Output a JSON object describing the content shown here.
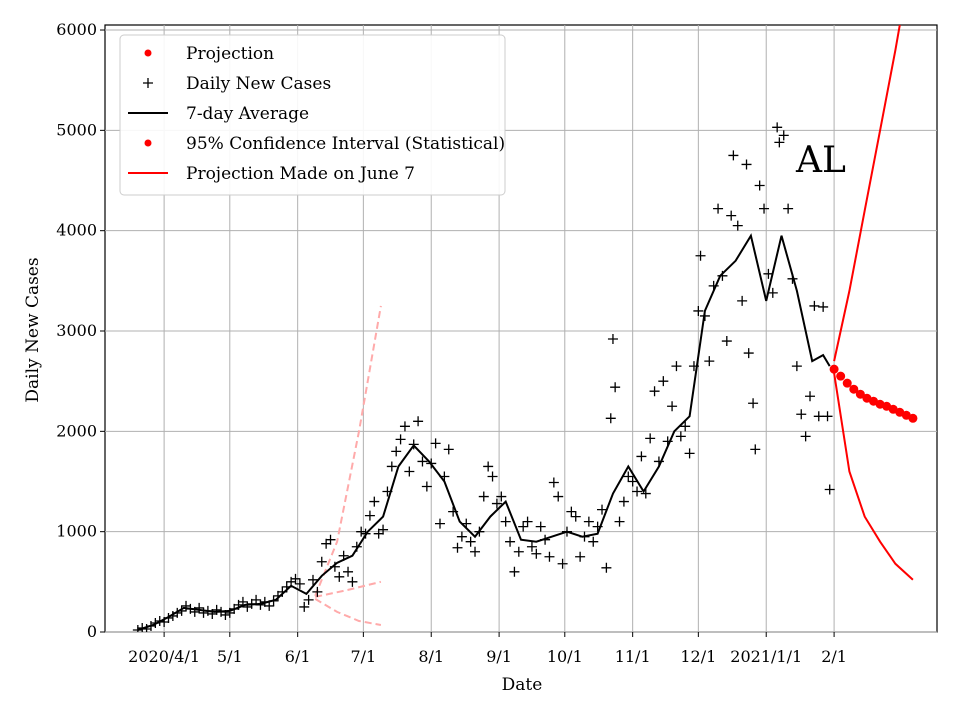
{
  "chart_data": {
    "type": "scatter",
    "xlabel": "Date",
    "ylabel": "Daily New Cases",
    "annotation": "AL",
    "ylim": [
      0,
      6050
    ],
    "xlim": [
      "2020-03-05",
      "2021-03-20"
    ],
    "grid": true,
    "legend_position": "top-left",
    "x_ticks": [
      {
        "date": "2020-04-01",
        "label": "2020/4/1"
      },
      {
        "date": "2020-05-01",
        "label": "5/1"
      },
      {
        "date": "2020-06-01",
        "label": "6/1"
      },
      {
        "date": "2020-07-01",
        "label": "7/1"
      },
      {
        "date": "2020-08-01",
        "label": "8/1"
      },
      {
        "date": "2020-09-01",
        "label": "9/1"
      },
      {
        "date": "2020-10-01",
        "label": "10/1"
      },
      {
        "date": "2020-11-01",
        "label": "11/1"
      },
      {
        "date": "2020-12-01",
        "label": "12/1"
      },
      {
        "date": "2021-01-01",
        "label": "2021/1/1"
      },
      {
        "date": "2021-02-01",
        "label": "2/1"
      }
    ],
    "y_ticks": [
      0,
      1000,
      2000,
      3000,
      4000,
      5000,
      6000
    ],
    "colors": {
      "projection": "#ff0000",
      "daily": "#000000",
      "average": "#000000",
      "ci": "#ff0000",
      "june_projection": "#ffaaaa"
    },
    "legend": [
      {
        "label": "Projection",
        "marker": "dot",
        "color": "#ff0000"
      },
      {
        "label": "Daily New Cases",
        "marker": "plus",
        "color": "#000000"
      },
      {
        "label": "7-day Average",
        "marker": "line",
        "color": "#000000"
      },
      {
        "label": "95% Confidence Interval (Statistical)",
        "marker": "dot",
        "color": "#ff0000"
      },
      {
        "label": "Projection Made on June 7",
        "marker": "line",
        "color": "#ff0000"
      }
    ],
    "series": [
      {
        "name": "Daily New Cases",
        "kind": "scatter",
        "points": [
          [
            "2020-03-20",
            20
          ],
          [
            "2020-03-22",
            40
          ],
          [
            "2020-03-24",
            30
          ],
          [
            "2020-03-26",
            60
          ],
          [
            "2020-03-28",
            90
          ],
          [
            "2020-03-30",
            110
          ],
          [
            "2020-04-01",
            100
          ],
          [
            "2020-04-03",
            140
          ],
          [
            "2020-04-05",
            160
          ],
          [
            "2020-04-07",
            190
          ],
          [
            "2020-04-09",
            210
          ],
          [
            "2020-04-11",
            260
          ],
          [
            "2020-04-13",
            230
          ],
          [
            "2020-04-15",
            200
          ],
          [
            "2020-04-17",
            240
          ],
          [
            "2020-04-19",
            190
          ],
          [
            "2020-04-21",
            210
          ],
          [
            "2020-04-23",
            180
          ],
          [
            "2020-04-25",
            220
          ],
          [
            "2020-04-27",
            200
          ],
          [
            "2020-04-29",
            170
          ],
          [
            "2020-05-01",
            190
          ],
          [
            "2020-05-03",
            230
          ],
          [
            "2020-05-05",
            270
          ],
          [
            "2020-05-07",
            300
          ],
          [
            "2020-05-09",
            250
          ],
          [
            "2020-05-11",
            280
          ],
          [
            "2020-05-13",
            320
          ],
          [
            "2020-05-15",
            270
          ],
          [
            "2020-05-17",
            300
          ],
          [
            "2020-05-19",
            260
          ],
          [
            "2020-05-21",
            310
          ],
          [
            "2020-05-23",
            360
          ],
          [
            "2020-05-25",
            400
          ],
          [
            "2020-05-27",
            450
          ],
          [
            "2020-05-29",
            500
          ],
          [
            "2020-05-31",
            530
          ],
          [
            "2020-06-02",
            480
          ],
          [
            "2020-06-04",
            250
          ],
          [
            "2020-06-06",
            320
          ],
          [
            "2020-06-08",
            520
          ],
          [
            "2020-06-10",
            400
          ],
          [
            "2020-06-12",
            700
          ],
          [
            "2020-06-14",
            880
          ],
          [
            "2020-06-16",
            920
          ],
          [
            "2020-06-18",
            650
          ],
          [
            "2020-06-20",
            550
          ],
          [
            "2020-06-22",
            760
          ],
          [
            "2020-06-24",
            600
          ],
          [
            "2020-06-26",
            500
          ],
          [
            "2020-06-28",
            850
          ],
          [
            "2020-06-30",
            1000
          ],
          [
            "2020-07-02",
            980
          ],
          [
            "2020-07-04",
            1160
          ],
          [
            "2020-07-06",
            1300
          ],
          [
            "2020-07-08",
            980
          ],
          [
            "2020-07-10",
            1020
          ],
          [
            "2020-07-12",
            1400
          ],
          [
            "2020-07-14",
            1650
          ],
          [
            "2020-07-16",
            1800
          ],
          [
            "2020-07-18",
            1920
          ],
          [
            "2020-07-20",
            2050
          ],
          [
            "2020-07-22",
            1600
          ],
          [
            "2020-07-24",
            1870
          ],
          [
            "2020-07-26",
            2100
          ],
          [
            "2020-07-28",
            1700
          ],
          [
            "2020-07-30",
            1450
          ],
          [
            "2020-08-01",
            1680
          ],
          [
            "2020-08-03",
            1880
          ],
          [
            "2020-08-05",
            1080
          ],
          [
            "2020-08-07",
            1550
          ],
          [
            "2020-08-09",
            1820
          ],
          [
            "2020-08-11",
            1200
          ],
          [
            "2020-08-13",
            840
          ],
          [
            "2020-08-15",
            950
          ],
          [
            "2020-08-17",
            1080
          ],
          [
            "2020-08-19",
            900
          ],
          [
            "2020-08-21",
            800
          ],
          [
            "2020-08-23",
            1000
          ],
          [
            "2020-08-25",
            1350
          ],
          [
            "2020-08-27",
            1650
          ],
          [
            "2020-08-29",
            1550
          ],
          [
            "2020-08-31",
            1280
          ],
          [
            "2020-09-02",
            1350
          ],
          [
            "2020-09-04",
            1100
          ],
          [
            "2020-09-06",
            900
          ],
          [
            "2020-09-08",
            600
          ],
          [
            "2020-09-10",
            800
          ],
          [
            "2020-09-12",
            1050
          ],
          [
            "2020-09-14",
            1100
          ],
          [
            "2020-09-16",
            850
          ],
          [
            "2020-09-18",
            780
          ],
          [
            "2020-09-20",
            1050
          ],
          [
            "2020-09-22",
            920
          ],
          [
            "2020-09-24",
            750
          ],
          [
            "2020-09-26",
            1490
          ],
          [
            "2020-09-28",
            1350
          ],
          [
            "2020-09-30",
            680
          ],
          [
            "2020-10-02",
            1000
          ],
          [
            "2020-10-04",
            1200
          ],
          [
            "2020-10-06",
            1150
          ],
          [
            "2020-10-08",
            750
          ],
          [
            "2020-10-10",
            950
          ],
          [
            "2020-10-12",
            1100
          ],
          [
            "2020-10-14",
            900
          ],
          [
            "2020-10-16",
            1050
          ],
          [
            "2020-10-18",
            1220
          ],
          [
            "2020-10-20",
            640
          ],
          [
            "2020-10-22",
            2130
          ],
          [
            "2020-10-23",
            2920
          ],
          [
            "2020-10-24",
            2440
          ],
          [
            "2020-10-26",
            1100
          ],
          [
            "2020-10-28",
            1300
          ],
          [
            "2020-10-30",
            1550
          ],
          [
            "2020-11-01",
            1500
          ],
          [
            "2020-11-03",
            1400
          ],
          [
            "2020-11-05",
            1750
          ],
          [
            "2020-11-07",
            1380
          ],
          [
            "2020-11-09",
            1930
          ],
          [
            "2020-11-11",
            2400
          ],
          [
            "2020-11-13",
            1700
          ],
          [
            "2020-11-15",
            2500
          ],
          [
            "2020-11-17",
            1900
          ],
          [
            "2020-11-19",
            2250
          ],
          [
            "2020-11-21",
            2650
          ],
          [
            "2020-11-23",
            1950
          ],
          [
            "2020-11-25",
            2050
          ],
          [
            "2020-11-27",
            1780
          ],
          [
            "2020-11-29",
            2650
          ],
          [
            "2020-12-01",
            3200
          ],
          [
            "2020-12-02",
            3750
          ],
          [
            "2020-12-04",
            3150
          ],
          [
            "2020-12-06",
            2700
          ],
          [
            "2020-12-08",
            3450
          ],
          [
            "2020-12-10",
            4220
          ],
          [
            "2020-12-12",
            3550
          ],
          [
            "2020-12-14",
            2900
          ],
          [
            "2020-12-16",
            4150
          ],
          [
            "2020-12-17",
            4750
          ],
          [
            "2020-12-19",
            4050
          ],
          [
            "2020-12-21",
            3300
          ],
          [
            "2020-12-23",
            4660
          ],
          [
            "2020-12-24",
            2780
          ],
          [
            "2020-12-26",
            2280
          ],
          [
            "2020-12-27",
            1820
          ],
          [
            "2020-12-29",
            4450
          ],
          [
            "2020-12-31",
            4220
          ],
          [
            "2021-01-02",
            3570
          ],
          [
            "2021-01-04",
            3380
          ],
          [
            "2021-01-06",
            5030
          ],
          [
            "2021-01-07",
            4880
          ],
          [
            "2021-01-09",
            4950
          ],
          [
            "2021-01-11",
            4220
          ],
          [
            "2021-01-13",
            3520
          ],
          [
            "2021-01-15",
            2650
          ],
          [
            "2021-01-17",
            2170
          ],
          [
            "2021-01-19",
            1950
          ],
          [
            "2021-01-21",
            2350
          ],
          [
            "2021-01-23",
            3250
          ],
          [
            "2021-01-25",
            2150
          ],
          [
            "2021-01-27",
            3240
          ],
          [
            "2021-01-29",
            2150
          ],
          [
            "2021-01-30",
            1420
          ]
        ]
      },
      {
        "name": "7-day Average",
        "kind": "line",
        "points": [
          [
            "2020-03-20",
            20
          ],
          [
            "2020-03-27",
            70
          ],
          [
            "2020-04-03",
            150
          ],
          [
            "2020-04-10",
            240
          ],
          [
            "2020-04-17",
            220
          ],
          [
            "2020-04-24",
            200
          ],
          [
            "2020-05-01",
            210
          ],
          [
            "2020-05-08",
            270
          ],
          [
            "2020-05-15",
            280
          ],
          [
            "2020-05-22",
            320
          ],
          [
            "2020-05-29",
            460
          ],
          [
            "2020-06-05",
            380
          ],
          [
            "2020-06-12",
            560
          ],
          [
            "2020-06-19",
            690
          ],
          [
            "2020-06-26",
            760
          ],
          [
            "2020-07-03",
            1000
          ],
          [
            "2020-07-10",
            1150
          ],
          [
            "2020-07-17",
            1650
          ],
          [
            "2020-07-24",
            1860
          ],
          [
            "2020-07-31",
            1700
          ],
          [
            "2020-08-07",
            1500
          ],
          [
            "2020-08-14",
            1100
          ],
          [
            "2020-08-21",
            950
          ],
          [
            "2020-08-28",
            1150
          ],
          [
            "2020-09-04",
            1300
          ],
          [
            "2020-09-11",
            920
          ],
          [
            "2020-09-18",
            900
          ],
          [
            "2020-09-25",
            950
          ],
          [
            "2020-10-02",
            1000
          ],
          [
            "2020-10-09",
            950
          ],
          [
            "2020-10-16",
            980
          ],
          [
            "2020-10-23",
            1380
          ],
          [
            "2020-10-30",
            1650
          ],
          [
            "2020-11-06",
            1400
          ],
          [
            "2020-11-13",
            1650
          ],
          [
            "2020-11-20",
            2000
          ],
          [
            "2020-11-27",
            2150
          ],
          [
            "2020-12-04",
            3200
          ],
          [
            "2020-12-11",
            3550
          ],
          [
            "2020-12-18",
            3700
          ],
          [
            "2020-12-25",
            3950
          ],
          [
            "2021-01-01",
            3300
          ],
          [
            "2021-01-08",
            3950
          ],
          [
            "2021-01-15",
            3400
          ],
          [
            "2021-01-22",
            2700
          ],
          [
            "2021-01-27",
            2760
          ],
          [
            "2021-01-30",
            2650
          ]
        ]
      },
      {
        "name": "Projection",
        "kind": "dots",
        "points": [
          [
            "2021-02-01",
            2620
          ],
          [
            "2021-02-04",
            2550
          ],
          [
            "2021-02-07",
            2480
          ],
          [
            "2021-02-10",
            2420
          ],
          [
            "2021-02-13",
            2370
          ],
          [
            "2021-02-16",
            2330
          ],
          [
            "2021-02-19",
            2300
          ],
          [
            "2021-02-22",
            2270
          ],
          [
            "2021-02-25",
            2250
          ],
          [
            "2021-02-28",
            2220
          ],
          [
            "2021-03-03",
            2190
          ],
          [
            "2021-03-06",
            2160
          ],
          [
            "2021-03-09",
            2130
          ]
        ]
      },
      {
        "name": "95% Confidence Interval (Statistical)",
        "kind": "line",
        "points_upper": [
          [
            "2021-02-01",
            2700
          ],
          [
            "2021-02-08",
            3400
          ],
          [
            "2021-02-15",
            4200
          ],
          [
            "2021-02-22",
            5000
          ],
          [
            "2021-03-01",
            5800
          ],
          [
            "2021-03-03",
            6050
          ]
        ],
        "points_lower": [
          [
            "2021-02-01",
            2580
          ],
          [
            "2021-02-08",
            1600
          ],
          [
            "2021-02-15",
            1150
          ],
          [
            "2021-02-22",
            900
          ],
          [
            "2021-03-01",
            680
          ],
          [
            "2021-03-09",
            520
          ]
        ]
      },
      {
        "name": "Projection Made on June 7",
        "kind": "dashed",
        "points_upper": [
          [
            "2020-06-09",
            360
          ],
          [
            "2020-06-19",
            900
          ],
          [
            "2020-06-29",
            2000
          ],
          [
            "2020-07-09",
            3250
          ]
        ],
        "points_mid": [
          [
            "2020-06-09",
            350
          ],
          [
            "2020-06-24",
            420
          ],
          [
            "2020-07-09",
            500
          ]
        ],
        "points_lower": [
          [
            "2020-06-09",
            330
          ],
          [
            "2020-06-19",
            200
          ],
          [
            "2020-06-29",
            110
          ],
          [
            "2020-07-09",
            70
          ]
        ]
      }
    ]
  }
}
